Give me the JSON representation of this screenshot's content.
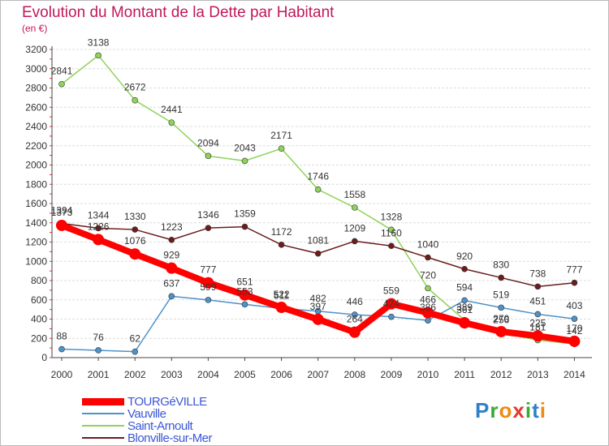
{
  "title": "Evolution du Montant de la Dette par Habitant",
  "subtitle": "(en €)",
  "logo_text": "Proxiti",
  "chart_data": {
    "type": "line",
    "x": [
      "2000",
      "2001",
      "2002",
      "2003",
      "2004",
      "2005",
      "2006",
      "2007",
      "2008",
      "2009",
      "2010",
      "2011",
      "2012",
      "2013",
      "2014"
    ],
    "ylim": [
      0,
      3200
    ],
    "yticks": [
      0,
      200,
      400,
      600,
      800,
      1000,
      1200,
      1400,
      1600,
      1800,
      2000,
      2200,
      2400,
      2600,
      2800,
      3000,
      3200
    ],
    "grid": "horizontal",
    "legend": "bottom-left",
    "series": [
      {
        "name": "TOURGéVILLE",
        "color": "#ff0000",
        "values": [
          1373,
          1226,
          1076,
          929,
          777,
          651,
          522,
          397,
          264,
          559,
          466,
          361,
          270,
          225,
          170
        ]
      },
      {
        "name": "Vauville",
        "color": "#4f92c8",
        "values": [
          88,
          76,
          62,
          637,
          599,
          553,
          511,
          482,
          446,
          424,
          386,
          594,
          519,
          451,
          403
        ]
      },
      {
        "name": "Saint-Arnoult",
        "color": "#8fd35a",
        "values": [
          2841,
          3138,
          2672,
          2441,
          2094,
          2043,
          2171,
          1746,
          1558,
          1328,
          720,
          389,
          256,
          181,
          142
        ]
      },
      {
        "name": "Blonville-sur-Mer",
        "color": "#6b1c1c",
        "values": [
          1394,
          1344,
          1330,
          1223,
          1346,
          1359,
          1172,
          1081,
          1209,
          1160,
          1040,
          920,
          830,
          738,
          777
        ]
      }
    ]
  }
}
